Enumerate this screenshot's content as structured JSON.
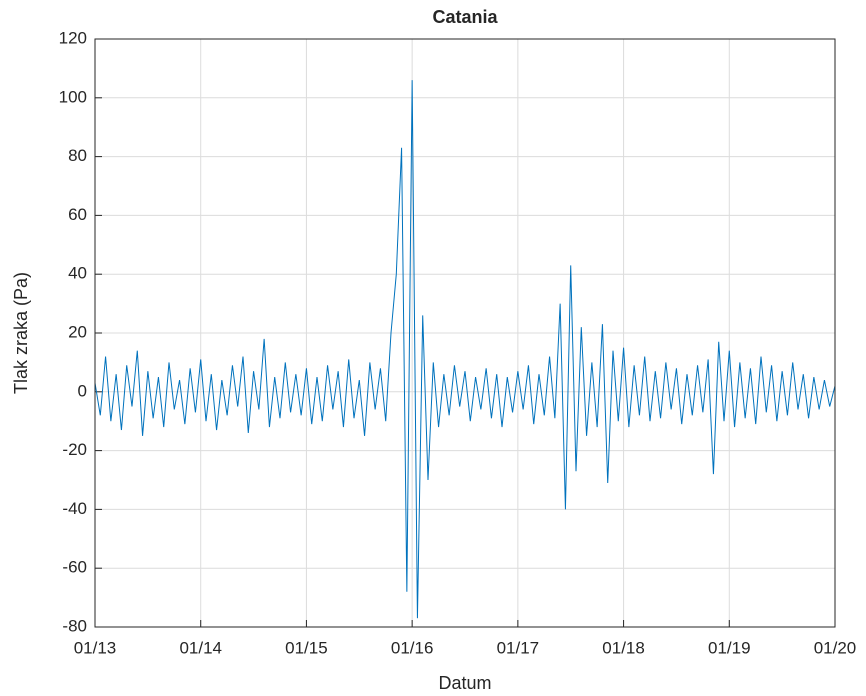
{
  "chart_data": {
    "type": "line",
    "title": "Catania",
    "xlabel": "Datum",
    "ylabel": "Tlak zraka (Pa)",
    "x": [
      13,
      13.05,
      13.1,
      13.15,
      13.2,
      13.25,
      13.3,
      13.35,
      13.4,
      13.45,
      13.5,
      13.55,
      13.6,
      13.65,
      13.7,
      13.75,
      13.8,
      13.85,
      13.9,
      13.95,
      14,
      14.05,
      14.1,
      14.15,
      14.2,
      14.25,
      14.3,
      14.35,
      14.4,
      14.45,
      14.5,
      14.55,
      14.6,
      14.65,
      14.7,
      14.75,
      14.8,
      14.85,
      14.9,
      14.95,
      15,
      15.05,
      15.1,
      15.15,
      15.2,
      15.25,
      15.3,
      15.35,
      15.4,
      15.45,
      15.5,
      15.55,
      15.6,
      15.65,
      15.7,
      15.75,
      15.8,
      15.85,
      15.9,
      15.95,
      16,
      16.05,
      16.1,
      16.15,
      16.2,
      16.25,
      16.3,
      16.35,
      16.4,
      16.45,
      16.5,
      16.55,
      16.6,
      16.65,
      16.7,
      16.75,
      16.8,
      16.85,
      16.9,
      16.95,
      17,
      17.05,
      17.1,
      17.15,
      17.2,
      17.25,
      17.3,
      17.35,
      17.4,
      17.45,
      17.5,
      17.55,
      17.6,
      17.65,
      17.7,
      17.75,
      17.8,
      17.85,
      17.9,
      17.95,
      18,
      18.05,
      18.1,
      18.15,
      18.2,
      18.25,
      18.3,
      18.35,
      18.4,
      18.45,
      18.5,
      18.55,
      18.6,
      18.65,
      18.7,
      18.75,
      18.8,
      18.85,
      18.9,
      18.95,
      19,
      19.05,
      19.1,
      19.15,
      19.2,
      19.25,
      19.3,
      19.35,
      19.4,
      19.45,
      19.5,
      19.55,
      19.6,
      19.65,
      19.7,
      19.75,
      19.8,
      19.85,
      19.9,
      19.95,
      20
    ],
    "values": [
      3,
      -8,
      12,
      -10,
      6,
      -13,
      9,
      -5,
      14,
      -15,
      7,
      -9,
      5,
      -12,
      10,
      -6,
      4,
      -11,
      8,
      -7,
      11,
      -10,
      6,
      -13,
      4,
      -8,
      9,
      -5,
      12,
      -14,
      7,
      -6,
      18,
      -12,
      5,
      -9,
      10,
      -7,
      6,
      -8,
      8,
      -11,
      5,
      -10,
      9,
      -6,
      7,
      -12,
      11,
      -9,
      4,
      -15,
      10,
      -6,
      8,
      -10,
      20,
      40,
      83,
      -68,
      106,
      -77,
      26,
      -30,
      10,
      -12,
      6,
      -8,
      9,
      -5,
      7,
      -10,
      5,
      -6,
      8,
      -9,
      6,
      -12,
      5,
      -7,
      7,
      -6,
      9,
      -11,
      6,
      -8,
      12,
      -9,
      30,
      -40,
      43,
      -27,
      22,
      -15,
      10,
      -12,
      23,
      -31,
      14,
      -10,
      15,
      -12,
      9,
      -8,
      12,
      -10,
      7,
      -9,
      10,
      -6,
      8,
      -11,
      6,
      -8,
      9,
      -7,
      11,
      -28,
      17,
      -10,
      14,
      -12,
      10,
      -9,
      8,
      -11,
      12,
      -7,
      9,
      -10,
      7,
      -8,
      10,
      -6,
      6,
      -9,
      5,
      -6,
      4,
      -5,
      2
    ],
    "color": "#0072bd",
    "xlim": [
      13,
      20
    ],
    "xticks": [
      {
        "value": 13,
        "label": "01/13"
      },
      {
        "value": 14,
        "label": "01/14"
      },
      {
        "value": 15,
        "label": "01/15"
      },
      {
        "value": 16,
        "label": "01/16"
      },
      {
        "value": 17,
        "label": "01/17"
      },
      {
        "value": 18,
        "label": "01/18"
      },
      {
        "value": 19,
        "label": "01/19"
      },
      {
        "value": 20,
        "label": "01/20"
      }
    ],
    "ylim": [
      -80,
      120
    ],
    "yticks": [
      -80,
      -60,
      -40,
      -20,
      0,
      20,
      40,
      60,
      80,
      100,
      120
    ],
    "grid": true
  }
}
